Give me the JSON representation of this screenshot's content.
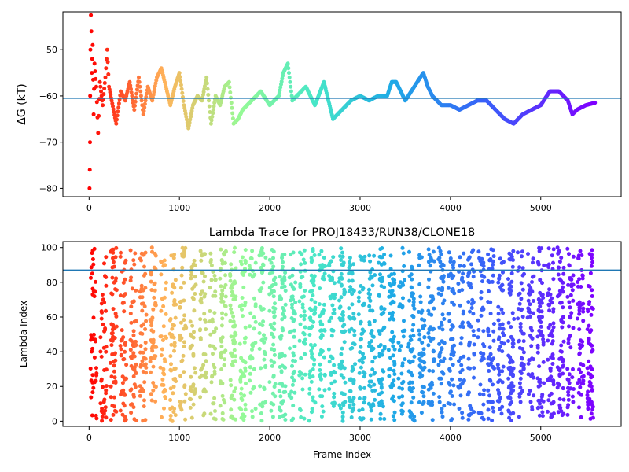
{
  "chart_data": [
    {
      "type": "scatter",
      "title": "",
      "xlabel": "",
      "ylabel": "ΔG (kT)",
      "xlim": [
        -290,
        5890
      ],
      "ylim": [
        -81.8,
        -41.8
      ],
      "xticks": [
        0,
        1000,
        2000,
        3000,
        4000,
        5000
      ],
      "xtick_labels": [
        "0",
        "1000",
        "2000",
        "3000",
        "4000",
        "5000"
      ],
      "yticks": [
        -80,
        -70,
        -60,
        -50
      ],
      "ytick_labels": [
        "−80",
        "−70",
        "−60",
        "−50"
      ],
      "hline": -60.5,
      "colormap": "rainbow (red → orange → green → cyan → blue → purple with frame index)",
      "grid": false,
      "series": [
        {
          "points_sampled": [
            [
              5,
              -80
            ],
            [
              8,
              -76
            ],
            [
              10,
              -70
            ],
            [
              12,
              -60
            ],
            [
              15,
              -50
            ],
            [
              20,
              -42.5
            ],
            [
              25,
              -46
            ],
            [
              30,
              -55
            ],
            [
              40,
              -49
            ],
            [
              50,
              -64
            ],
            [
              60,
              -53
            ],
            [
              80,
              -58
            ],
            [
              100,
              -68
            ],
            [
              120,
              -57
            ],
            [
              150,
              -62
            ],
            [
              180,
              -56
            ],
            [
              200,
              -50
            ],
            [
              220,
              -58
            ],
            [
              250,
              -61
            ],
            [
              300,
              -66
            ],
            [
              350,
              -59
            ],
            [
              400,
              -61
            ],
            [
              450,
              -57
            ],
            [
              500,
              -63
            ],
            [
              550,
              -56
            ],
            [
              600,
              -64
            ],
            [
              650,
              -58
            ],
            [
              700,
              -61
            ],
            [
              750,
              -56
            ],
            [
              800,
              -54
            ],
            [
              850,
              -58
            ],
            [
              900,
              -62
            ],
            [
              950,
              -58
            ],
            [
              1000,
              -55
            ],
            [
              1050,
              -62
            ],
            [
              1100,
              -67
            ],
            [
              1150,
              -62
            ],
            [
              1200,
              -60
            ],
            [
              1250,
              -61
            ],
            [
              1300,
              -56
            ],
            [
              1350,
              -66
            ],
            [
              1400,
              -60
            ],
            [
              1450,
              -62
            ],
            [
              1500,
              -58
            ],
            [
              1550,
              -57
            ],
            [
              1600,
              -66
            ],
            [
              1650,
              -65
            ],
            [
              1700,
              -63
            ],
            [
              1800,
              -61
            ],
            [
              1900,
              -59
            ],
            [
              2000,
              -62
            ],
            [
              2100,
              -60
            ],
            [
              2150,
              -55
            ],
            [
              2200,
              -53
            ],
            [
              2250,
              -61
            ],
            [
              2300,
              -60
            ],
            [
              2400,
              -58
            ],
            [
              2500,
              -62
            ],
            [
              2600,
              -57
            ],
            [
              2700,
              -65
            ],
            [
              2800,
              -63
            ],
            [
              2900,
              -61
            ],
            [
              3000,
              -60
            ],
            [
              3100,
              -61
            ],
            [
              3200,
              -60
            ],
            [
              3300,
              -60
            ],
            [
              3350,
              -57
            ],
            [
              3400,
              -57
            ],
            [
              3500,
              -61
            ],
            [
              3600,
              -58
            ],
            [
              3700,
              -55
            ],
            [
              3750,
              -58
            ],
            [
              3800,
              -60
            ],
            [
              3900,
              -62
            ],
            [
              4000,
              -62
            ],
            [
              4100,
              -63
            ],
            [
              4200,
              -62
            ],
            [
              4300,
              -61
            ],
            [
              4400,
              -61
            ],
            [
              4500,
              -63
            ],
            [
              4600,
              -65
            ],
            [
              4700,
              -66
            ],
            [
              4800,
              -64
            ],
            [
              4900,
              -63
            ],
            [
              5000,
              -62
            ],
            [
              5100,
              -59
            ],
            [
              5200,
              -59
            ],
            [
              5300,
              -61
            ],
            [
              5350,
              -64
            ],
            [
              5400,
              -63
            ],
            [
              5500,
              -62
            ],
            [
              5600,
              -61.5
            ]
          ]
        }
      ]
    },
    {
      "type": "scatter",
      "title": "Lambda Trace for PROJ18433/RUN38/CLONE18",
      "xlabel": "Frame Index",
      "ylabel": "Lambda Index",
      "xlim": [
        -290,
        5890
      ],
      "ylim": [
        -3,
        103.5
      ],
      "xticks": [
        0,
        1000,
        2000,
        3000,
        4000,
        5000
      ],
      "xtick_labels": [
        "0",
        "1000",
        "2000",
        "3000",
        "4000",
        "5000"
      ],
      "yticks": [
        0,
        20,
        40,
        60,
        80,
        100
      ],
      "ytick_labels": [
        "0",
        "20",
        "40",
        "60",
        "80",
        "100"
      ],
      "hline": 87,
      "colormap": "rainbow (red → orange → green → cyan → blue → purple with frame index)",
      "grid": false,
      "series": [
        {
          "description": "dense cloud of points spanning lambda index 0–100 across frames 0–5600, in vertical bands"
        }
      ]
    }
  ]
}
